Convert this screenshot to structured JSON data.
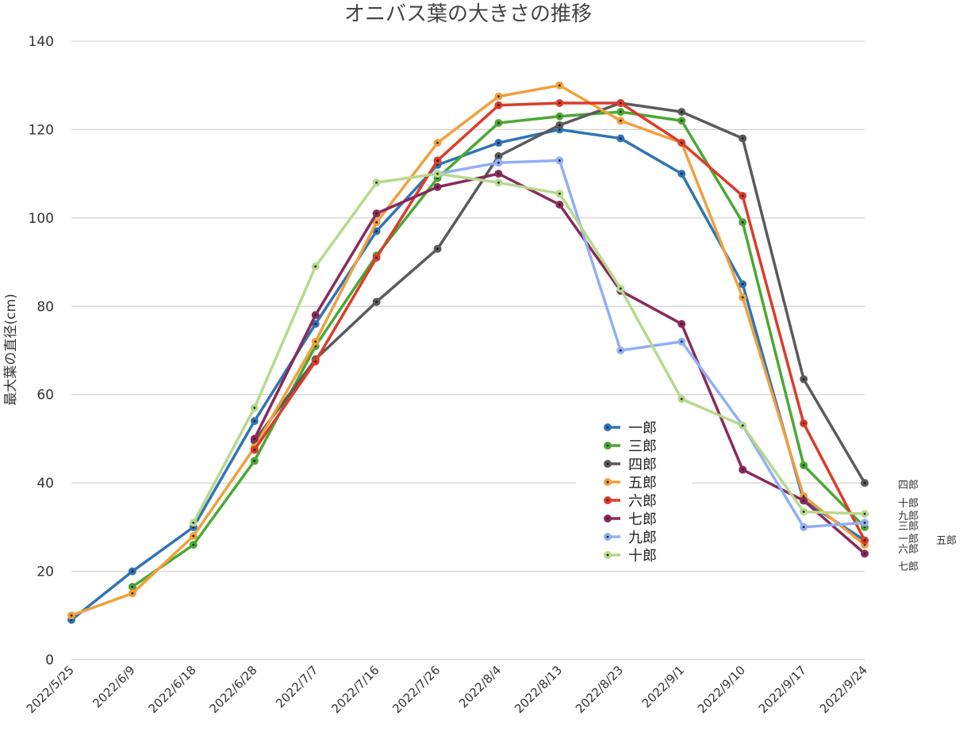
{
  "chart_data": {
    "type": "line",
    "title": "オニバス葉の大きさの推移",
    "xlabel": "",
    "ylabel": "最大葉の直径(cm)",
    "ylim": [
      0,
      140
    ],
    "yticks": [
      0,
      20,
      40,
      60,
      80,
      100,
      120,
      140
    ],
    "grid": true,
    "legend_position": "center-right",
    "x": [
      "2022/5/25",
      "2022/6/9",
      "2022/6/18",
      "2022/6/28",
      "2022/7/7",
      "2022/7/16",
      "2022/7/26",
      "2022/8/4",
      "2022/8/13",
      "2022/8/23",
      "2022/9/1",
      "2022/9/10",
      "2022/9/17",
      "2022/9/24"
    ],
    "series": [
      {
        "name": "一郎",
        "color": "#2f74b5",
        "values": [
          9,
          20,
          30,
          54,
          76,
          97,
          112,
          117,
          120,
          118,
          110,
          85,
          36,
          27
        ]
      },
      {
        "name": "三郎",
        "color": "#4aa832",
        "values": [
          null,
          16.5,
          26,
          45,
          71,
          91.5,
          109,
          121.5,
          123,
          124,
          122,
          99,
          44,
          30
        ]
      },
      {
        "name": "四郎",
        "color": "#5a5a5a",
        "values": [
          null,
          null,
          null,
          49.5,
          68,
          81,
          93,
          114,
          121,
          126,
          124,
          118,
          63.5,
          40
        ]
      },
      {
        "name": "五郎",
        "color": "#f0a03c",
        "values": [
          10,
          15,
          28,
          48,
          72,
          99,
          117,
          127.5,
          130,
          122,
          117,
          82,
          37,
          26
        ]
      },
      {
        "name": "六郎",
        "color": "#dc3c2a",
        "values": [
          null,
          null,
          null,
          47.5,
          67.5,
          91,
          113,
          125.5,
          126,
          126,
          117,
          105,
          53.5,
          27
        ]
      },
      {
        "name": "七郎",
        "color": "#8a2a5a",
        "values": [
          null,
          null,
          null,
          50,
          78,
          101,
          107,
          110,
          103,
          83.5,
          76,
          43,
          36,
          24
        ]
      },
      {
        "name": "九郎",
        "color": "#8fb0f5",
        "values": [
          null,
          null,
          null,
          null,
          null,
          null,
          110,
          112.5,
          113,
          70,
          72,
          53,
          30,
          31
        ]
      },
      {
        "name": "十郎",
        "color": "#b5da8c",
        "values": [
          null,
          null,
          31,
          57,
          89,
          108,
          110,
          108,
          105.5,
          84,
          59,
          53,
          33.5,
          33
        ]
      }
    ],
    "end_labels": [
      "四郎",
      "十郎",
      "九郎",
      "三郎",
      "一郎",
      "六郎",
      "五郎",
      "七郎"
    ]
  }
}
